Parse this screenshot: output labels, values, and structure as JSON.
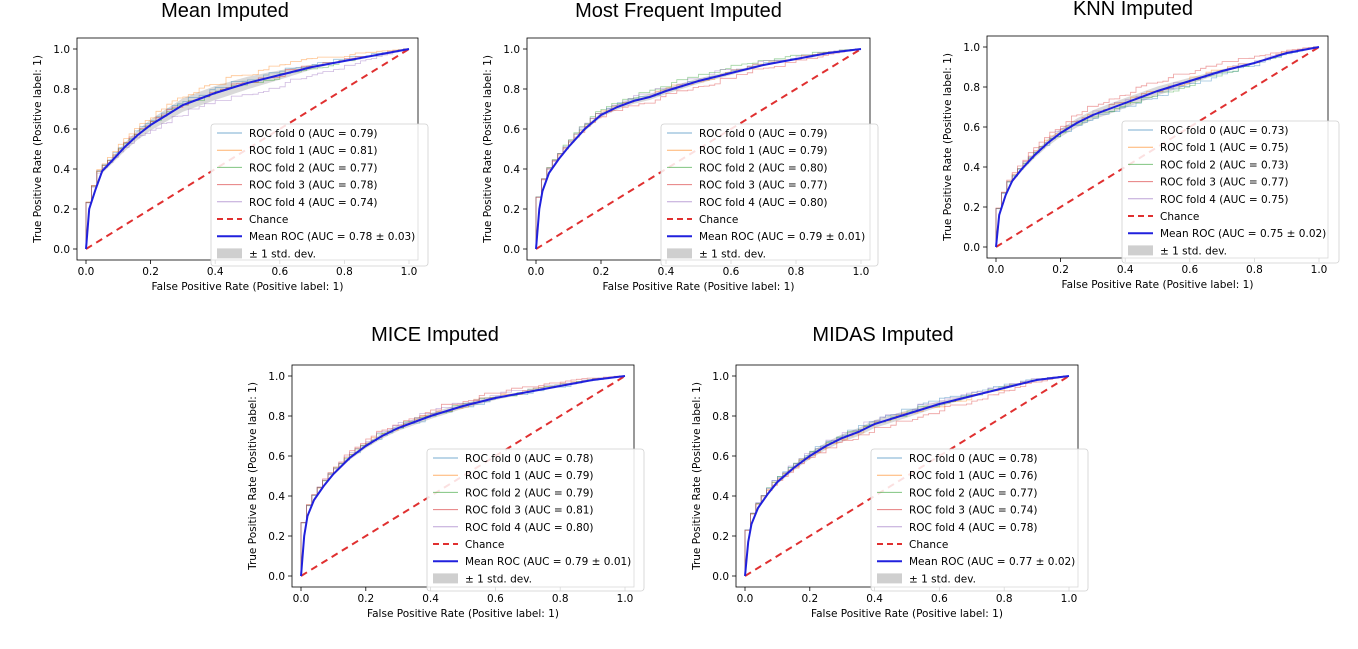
{
  "colors": {
    "fold0": "#1f77b4",
    "fold1": "#ff7f0e",
    "fold2": "#2ca02c",
    "fold3": "#d62728",
    "fold4": "#9467bd",
    "chance": "#e03030",
    "mean": "#2020dd",
    "band": "#cfcfcf"
  },
  "chart_data": [
    {
      "type": "line",
      "title": "Mean Imputed",
      "xlabel": "False Positive Rate (Positive label: 1)",
      "ylabel": "True Positive Rate (Positive label: 1)",
      "xlim": [
        0,
        1
      ],
      "ylim": [
        0,
        1
      ],
      "x_ticks": [
        "0.0",
        "0.2",
        "0.4",
        "0.6",
        "0.8",
        "1.0"
      ],
      "y_ticks": [
        "0.0",
        "0.2",
        "0.4",
        "0.6",
        "0.8",
        "1.0"
      ],
      "legend_position": "lower-right",
      "legend": [
        "ROC fold 0 (AUC = 0.79)",
        "ROC fold 1 (AUC = 0.81)",
        "ROC fold 2 (AUC = 0.77)",
        "ROC fold 3 (AUC = 0.78)",
        "ROC fold 4 (AUC = 0.74)",
        "Chance",
        "Mean ROC (AUC = 0.78 ± 0.03)",
        "± 1 std. dev."
      ],
      "mean_roc": {
        "x": [
          0,
          0.01,
          0.03,
          0.05,
          0.08,
          0.12,
          0.16,
          0.2,
          0.25,
          0.3,
          0.35,
          0.4,
          0.5,
          0.6,
          0.7,
          0.8,
          0.9,
          1.0
        ],
        "y": [
          0,
          0.2,
          0.3,
          0.39,
          0.44,
          0.51,
          0.57,
          0.62,
          0.67,
          0.72,
          0.75,
          0.78,
          0.83,
          0.87,
          0.91,
          0.94,
          0.97,
          1.0
        ]
      },
      "std_band": 0.035,
      "fold_offsets": [
        0.01,
        0.04,
        -0.01,
        0.0,
        -0.06
      ]
    },
    {
      "type": "line",
      "title": "Most Frequent Imputed",
      "xlabel": "False Positive Rate (Positive label: 1)",
      "ylabel": "True Positive Rate (Positive label: 1)",
      "xlim": [
        0,
        1
      ],
      "ylim": [
        0,
        1
      ],
      "x_ticks": [
        "0.0",
        "0.2",
        "0.4",
        "0.6",
        "0.8",
        "1.0"
      ],
      "y_ticks": [
        "0.0",
        "0.2",
        "0.4",
        "0.6",
        "0.8",
        "1.0"
      ],
      "legend_position": "lower-right",
      "legend": [
        "ROC fold 0 (AUC = 0.79)",
        "ROC fold 1 (AUC = 0.79)",
        "ROC fold 2 (AUC = 0.80)",
        "ROC fold 3 (AUC = 0.77)",
        "ROC fold 4 (AUC = 0.80)",
        "Chance",
        "Mean ROC (AUC = 0.79 ± 0.01)",
        "± 1 std. dev."
      ],
      "mean_roc": {
        "x": [
          0,
          0.01,
          0.02,
          0.04,
          0.07,
          0.1,
          0.15,
          0.2,
          0.25,
          0.3,
          0.35,
          0.4,
          0.5,
          0.6,
          0.7,
          0.8,
          0.9,
          1.0
        ],
        "y": [
          0,
          0.2,
          0.29,
          0.38,
          0.45,
          0.51,
          0.6,
          0.67,
          0.71,
          0.74,
          0.76,
          0.79,
          0.84,
          0.88,
          0.92,
          0.95,
          0.98,
          1.0
        ]
      },
      "std_band": 0.015,
      "fold_offsets": [
        0.0,
        0.0,
        0.02,
        -0.03,
        0.01
      ]
    },
    {
      "type": "line",
      "title": "KNN Imputed",
      "xlabel": "False Positive Rate (Positive label: 1)",
      "ylabel": "True Positive Rate (Positive label: 1)",
      "xlim": [
        0,
        1
      ],
      "ylim": [
        0,
        1
      ],
      "x_ticks": [
        "0.0",
        "0.2",
        "0.4",
        "0.6",
        "0.8",
        "1.0"
      ],
      "y_ticks": [
        "0.0",
        "0.2",
        "0.4",
        "0.6",
        "0.8",
        "1.0"
      ],
      "legend_position": "lower-right",
      "legend": [
        "ROC fold 0 (AUC = 0.73)",
        "ROC fold 1 (AUC = 0.75)",
        "ROC fold 2 (AUC = 0.73)",
        "ROC fold 3 (AUC = 0.77)",
        "ROC fold 4 (AUC = 0.75)",
        "Chance",
        "Mean ROC (AUC = 0.75 ± 0.02)",
        "± 1 std. dev."
      ],
      "mean_roc": {
        "x": [
          0,
          0.01,
          0.03,
          0.05,
          0.08,
          0.12,
          0.16,
          0.2,
          0.25,
          0.3,
          0.4,
          0.5,
          0.6,
          0.7,
          0.8,
          0.9,
          1.0
        ],
        "y": [
          0,
          0.16,
          0.26,
          0.33,
          0.39,
          0.46,
          0.52,
          0.57,
          0.62,
          0.66,
          0.72,
          0.78,
          0.83,
          0.88,
          0.92,
          0.97,
          1.0
        ]
      },
      "std_band": 0.025,
      "fold_offsets": [
        -0.03,
        0.0,
        -0.02,
        0.04,
        0.0
      ]
    },
    {
      "type": "line",
      "title": "MICE Imputed",
      "xlabel": "False Positive Rate (Positive label: 1)",
      "ylabel": "True Positive Rate (Positive label: 1)",
      "xlim": [
        0,
        1
      ],
      "ylim": [
        0,
        1
      ],
      "x_ticks": [
        "0.0",
        "0.2",
        "0.4",
        "0.6",
        "0.8",
        "1.0"
      ],
      "y_ticks": [
        "0.0",
        "0.2",
        "0.4",
        "0.6",
        "0.8",
        "1.0"
      ],
      "legend_position": "lower-right",
      "legend": [
        "ROC fold 0 (AUC = 0.78)",
        "ROC fold 1 (AUC = 0.79)",
        "ROC fold 2 (AUC = 0.79)",
        "ROC fold 3 (AUC = 0.81)",
        "ROC fold 4 (AUC = 0.80)",
        "Chance",
        "Mean ROC (AUC = 0.79 ± 0.01)",
        "± 1 std. dev."
      ],
      "mean_roc": {
        "x": [
          0,
          0.01,
          0.02,
          0.04,
          0.07,
          0.1,
          0.15,
          0.2,
          0.25,
          0.3,
          0.35,
          0.4,
          0.5,
          0.6,
          0.7,
          0.8,
          0.9,
          1.0
        ],
        "y": [
          0,
          0.2,
          0.3,
          0.38,
          0.45,
          0.51,
          0.59,
          0.65,
          0.7,
          0.74,
          0.77,
          0.8,
          0.85,
          0.89,
          0.92,
          0.95,
          0.98,
          1.0
        ]
      },
      "std_band": 0.015,
      "fold_offsets": [
        -0.01,
        0.0,
        0.0,
        0.02,
        0.01
      ]
    },
    {
      "type": "line",
      "title": "MIDAS Imputed",
      "xlabel": "False Positive Rate (Positive label: 1)",
      "ylabel": "True Positive Rate (Positive label: 1)",
      "xlim": [
        0,
        1
      ],
      "ylim": [
        0,
        1
      ],
      "x_ticks": [
        "0.0",
        "0.2",
        "0.4",
        "0.6",
        "0.8",
        "1.0"
      ],
      "y_ticks": [
        "0.0",
        "0.2",
        "0.4",
        "0.6",
        "0.8",
        "1.0"
      ],
      "legend_position": "lower-right",
      "legend": [
        "ROC fold 0 (AUC = 0.78)",
        "ROC fold 1 (AUC = 0.76)",
        "ROC fold 2 (AUC = 0.77)",
        "ROC fold 3 (AUC = 0.74)",
        "ROC fold 4 (AUC = 0.78)",
        "Chance",
        "Mean ROC (AUC = 0.77 ± 0.02)",
        "± 1 std. dev."
      ],
      "mean_roc": {
        "x": [
          0,
          0.01,
          0.02,
          0.04,
          0.07,
          0.1,
          0.15,
          0.2,
          0.25,
          0.3,
          0.35,
          0.4,
          0.5,
          0.6,
          0.7,
          0.8,
          0.9,
          1.0
        ],
        "y": [
          0,
          0.17,
          0.26,
          0.34,
          0.41,
          0.47,
          0.54,
          0.6,
          0.65,
          0.69,
          0.72,
          0.76,
          0.81,
          0.86,
          0.9,
          0.94,
          0.98,
          1.0
        ]
      },
      "std_band": 0.02,
      "fold_offsets": [
        0.01,
        -0.01,
        0.0,
        -0.04,
        0.01
      ]
    }
  ]
}
